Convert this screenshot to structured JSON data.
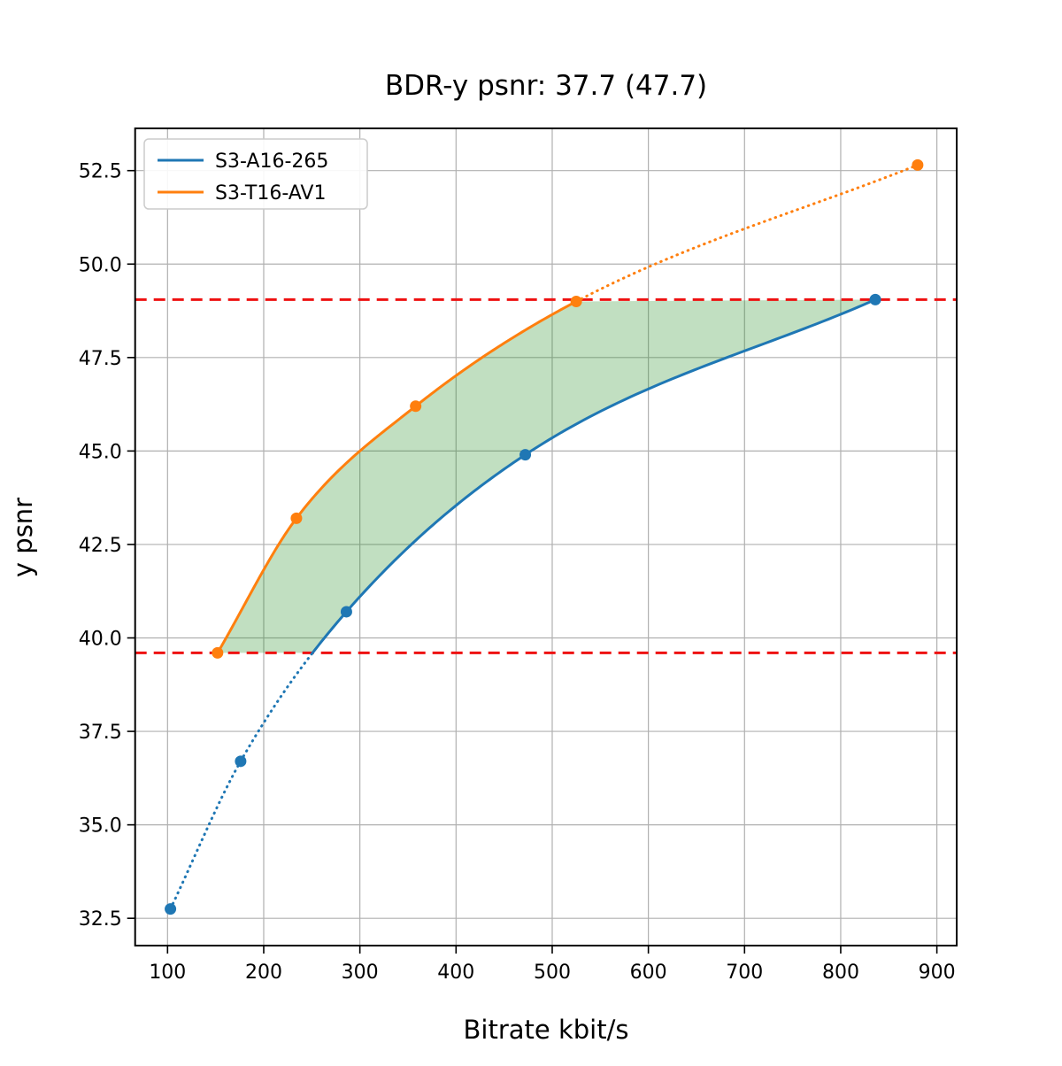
{
  "title": "BDR-y psnr: 37.7 (47.7)",
  "chart_data": {
    "type": "line",
    "title": "BDR-y psnr: 37.7 (47.7)",
    "xlabel": "Bitrate kbit/s",
    "ylabel": "y psnr",
    "xlim": [
      66.3,
      920.6
    ],
    "ylim": [
      31.77,
      53.63
    ],
    "grid": true,
    "legend_position": "upper-left",
    "x_tick_values": [
      100,
      200,
      300,
      400,
      500,
      600,
      700,
      800,
      900
    ],
    "x_tick_labels": [
      "100",
      "200",
      "300",
      "400",
      "500",
      "600",
      "700",
      "800",
      "900"
    ],
    "y_tick_values": [
      32.5,
      35.0,
      37.5,
      40.0,
      42.5,
      45.0,
      47.5,
      50.0,
      52.5
    ],
    "y_tick_labels": [
      "32.5",
      "35.0",
      "37.5",
      "40.0",
      "42.5",
      "45.0",
      "47.5",
      "50.0",
      "52.5"
    ],
    "series": [
      {
        "name": "S3-A16-265",
        "color": "#1f77b4",
        "x": [
          103,
          176,
          286,
          472,
          836
        ],
        "y": [
          32.75,
          36.7,
          40.7,
          44.9,
          49.05
        ],
        "dotted_rule": "below_lower_ref"
      },
      {
        "name": "S3-T16-AV1",
        "color": "#ff7f0e",
        "x": [
          152,
          234,
          358,
          525,
          880
        ],
        "y": [
          39.6,
          43.2,
          46.2,
          49.0,
          52.65
        ],
        "dotted_rule": "after_point_index_3"
      }
    ],
    "reference_lines": [
      {
        "y": 39.6,
        "color": "#ee1111",
        "style": "dashed",
        "label": "lower-psnr-bound"
      },
      {
        "y": 49.05,
        "color": "#ee1111",
        "style": "dashed",
        "label": "upper-psnr-bound"
      }
    ],
    "shaded_region": {
      "description": "area between the two rate-distortion curves clipped to y between 39.6 and 49.05",
      "color": "rgba(34,139,34,0.28)"
    },
    "colors": {
      "grid": "#b0b0b0",
      "spine": "#000000",
      "legend_border": "#cccccc"
    }
  }
}
